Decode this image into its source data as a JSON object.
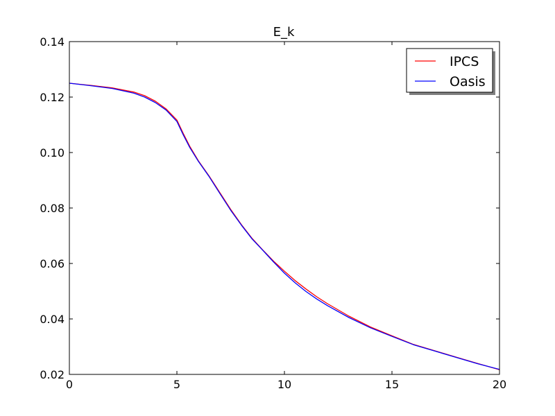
{
  "chart_data": {
    "type": "line",
    "title": "E_k",
    "xlabel": "",
    "ylabel": "",
    "xlim": [
      0,
      20
    ],
    "ylim": [
      0.02,
      0.14
    ],
    "xticks": [
      0,
      5,
      10,
      15,
      20
    ],
    "xtick_labels": [
      "0",
      "5",
      "10",
      "15",
      "20"
    ],
    "yticks": [
      0.02,
      0.04,
      0.06,
      0.08,
      0.1,
      0.12,
      0.14
    ],
    "ytick_labels": [
      "0.02",
      "0.04",
      "0.06",
      "0.08",
      "0.10",
      "0.12",
      "0.14"
    ],
    "grid": false,
    "legend": "top-right",
    "series": [
      {
        "name": "IPCS",
        "color": "#ff0000",
        "x": [
          0,
          1,
          2,
          3,
          3.5,
          4,
          4.5,
          5,
          5.3,
          5.6,
          6,
          6.5,
          7,
          7.5,
          8,
          8.5,
          9,
          9.5,
          10,
          10.5,
          11,
          11.5,
          12,
          13,
          14,
          15,
          16,
          17,
          18,
          19,
          20
        ],
        "y": [
          0.125,
          0.1242,
          0.1233,
          0.1218,
          0.1205,
          0.1185,
          0.1157,
          0.1117,
          0.1068,
          0.1022,
          0.097,
          0.0915,
          0.0855,
          0.0795,
          0.074,
          0.069,
          0.0648,
          0.0608,
          0.0572,
          0.0538,
          0.0508,
          0.048,
          0.0455,
          0.041,
          0.0371,
          0.0339,
          0.0308,
          0.0285,
          0.0262,
          0.0239,
          0.0217
        ]
      },
      {
        "name": "Oasis",
        "color": "#0000ff",
        "x": [
          0,
          1,
          2,
          3,
          3.5,
          4,
          4.5,
          5,
          5.3,
          5.6,
          6,
          6.5,
          7,
          7.5,
          8,
          8.5,
          9,
          9.5,
          10,
          10.5,
          11,
          11.5,
          12,
          13,
          14,
          15,
          16,
          17,
          18,
          19,
          20
        ],
        "y": [
          0.125,
          0.1241,
          0.1231,
          0.1214,
          0.12,
          0.118,
          0.1153,
          0.1112,
          0.1063,
          0.1018,
          0.0968,
          0.0913,
          0.0852,
          0.0792,
          0.0738,
          0.0688,
          0.0647,
          0.0605,
          0.0565,
          0.053,
          0.0499,
          0.0472,
          0.0448,
          0.0405,
          0.0368,
          0.0337,
          0.0307,
          0.0284,
          0.0261,
          0.0238,
          0.0218
        ]
      }
    ]
  }
}
